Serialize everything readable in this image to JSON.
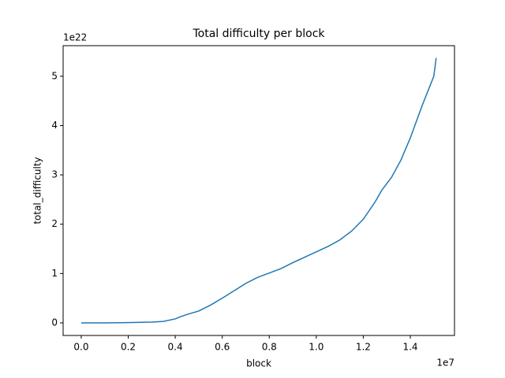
{
  "chart_data": {
    "type": "line",
    "title": "Total difficulty per block",
    "x_label": "block",
    "y_label": "total_difficulty",
    "x_offset_label": "1e7",
    "y_offset_label": "1e22",
    "x": [
      0,
      0.1,
      0.2,
      0.3,
      0.35,
      0.4,
      0.42,
      0.45,
      0.5,
      0.55,
      0.6,
      0.65,
      0.7,
      0.75,
      0.8,
      0.85,
      0.9,
      0.95,
      1.0,
      1.05,
      1.1,
      1.15,
      1.2,
      1.25,
      1.28,
      1.32,
      1.36,
      1.4,
      1.45,
      1.5,
      1.51
    ],
    "series": [
      {
        "name": "total_difficulty",
        "color": "#1f77b4",
        "values": [
          0,
          0,
          0.005,
          0.015,
          0.03,
          0.08,
          0.12,
          0.17,
          0.24,
          0.36,
          0.5,
          0.65,
          0.8,
          0.92,
          1.01,
          1.1,
          1.22,
          1.33,
          1.44,
          1.55,
          1.68,
          1.86,
          2.1,
          2.45,
          2.7,
          2.95,
          3.3,
          3.75,
          4.4,
          5.0,
          5.37
        ]
      }
    ],
    "xlim": [
      -0.077,
      1.588
    ],
    "ylim": [
      -0.256,
      5.62
    ],
    "xticks": [
      {
        "value": 0,
        "label": "0.0"
      },
      0.2,
      0.4,
      0.6,
      0.8,
      {
        "value": 1,
        "label": "1.0"
      },
      1.2,
      1.4
    ],
    "yticks": [
      0,
      1,
      2,
      3,
      4,
      5
    ]
  }
}
